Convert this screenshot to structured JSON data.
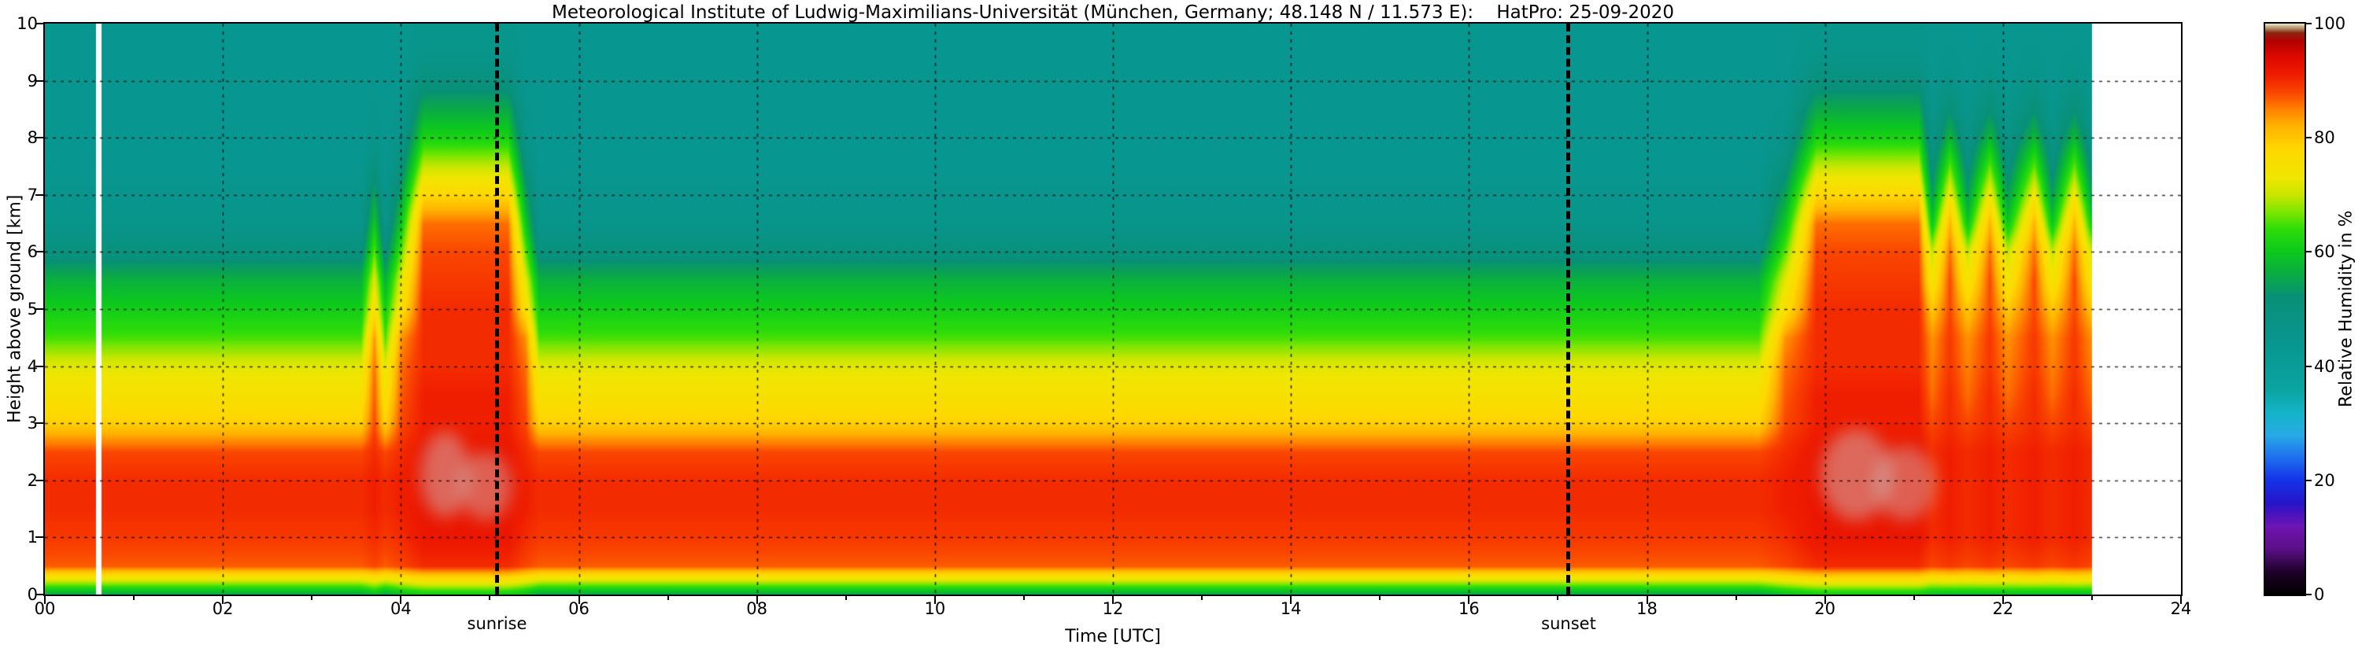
{
  "chart_data": {
    "type": "heatmap",
    "title": "Meteorological Institute of Ludwig-Maximilians-Universität (München, Germany; 48.148 N / 11.573 E):    HatPro: 25-09-2020",
    "xlabel": "Time [UTC]",
    "ylabel": "Height above ground [km]",
    "xlim": [
      0,
      24
    ],
    "ylim": [
      0,
      10
    ],
    "grid": "dashed black, vertical every 2 h, horizontal every 1 km",
    "xticks": [
      {
        "v": 0,
        "label": "00"
      },
      {
        "v": 2,
        "label": "02"
      },
      {
        "v": 4,
        "label": "04"
      },
      {
        "v": 6,
        "label": "06"
      },
      {
        "v": 8,
        "label": "08"
      },
      {
        "v": 10,
        "label": "10"
      },
      {
        "v": 12,
        "label": "12"
      },
      {
        "v": 14,
        "label": "14"
      },
      {
        "v": 16,
        "label": "16"
      },
      {
        "v": 18,
        "label": "18"
      },
      {
        "v": 20,
        "label": "20"
      },
      {
        "v": 22,
        "label": "22"
      },
      {
        "v": 24,
        "label": "24"
      }
    ],
    "xticks_minor": [
      1,
      3,
      5,
      7,
      9,
      11,
      13,
      15,
      17,
      19,
      21,
      23
    ],
    "yticks": [
      {
        "v": 0,
        "label": "0"
      },
      {
        "v": 1,
        "label": "1"
      },
      {
        "v": 2,
        "label": "2"
      },
      {
        "v": 3,
        "label": "3"
      },
      {
        "v": 4,
        "label": "4"
      },
      {
        "v": 5,
        "label": "5"
      },
      {
        "v": 6,
        "label": "6"
      },
      {
        "v": 7,
        "label": "7"
      },
      {
        "v": 8,
        "label": "8"
      },
      {
        "v": 9,
        "label": "9"
      },
      {
        "v": 10,
        "label": "10"
      }
    ],
    "colorbar": {
      "label": "Relative Humidity in %",
      "range": [
        0,
        100
      ],
      "ticks": [
        {
          "v": 0,
          "label": "0"
        },
        {
          "v": 20,
          "label": "20"
        },
        {
          "v": 40,
          "label": "40"
        },
        {
          "v": 60,
          "label": "60"
        },
        {
          "v": 80,
          "label": "80"
        },
        {
          "v": 100,
          "label": "100"
        }
      ]
    },
    "colormap": [
      [
        0,
        "#000000"
      ],
      [
        4,
        "#1e0028"
      ],
      [
        8,
        "#5a0f86"
      ],
      [
        12,
        "#6e14b4"
      ],
      [
        16,
        "#2814c8"
      ],
      [
        20,
        "#1432e6"
      ],
      [
        24,
        "#1e6ef0"
      ],
      [
        28,
        "#28aae6"
      ],
      [
        32,
        "#14b4c8"
      ],
      [
        36,
        "#0aa4a0"
      ],
      [
        44,
        "#089690"
      ],
      [
        52,
        "#089078"
      ],
      [
        56,
        "#0aaa46"
      ],
      [
        60,
        "#0cc81e"
      ],
      [
        64,
        "#2cdc0a"
      ],
      [
        67,
        "#7ce600"
      ],
      [
        70,
        "#c8e600"
      ],
      [
        73,
        "#f0e600"
      ],
      [
        78,
        "#ffd800"
      ],
      [
        82,
        "#ffb400"
      ],
      [
        85,
        "#ff8200"
      ],
      [
        88,
        "#fa4600"
      ],
      [
        91,
        "#f01e00"
      ],
      [
        94,
        "#e00a00"
      ],
      [
        97,
        "#b40000"
      ],
      [
        98.5,
        "#8c2814"
      ],
      [
        99.3,
        "#b99a6e"
      ],
      [
        100,
        "#e8dcc8"
      ]
    ],
    "heights_km": [
      0,
      0.5,
      1,
      1.5,
      2,
      2.5,
      3,
      3.5,
      4,
      4.5,
      5,
      5.5,
      6,
      6.5,
      7,
      7.5,
      8,
      8.5,
      9,
      9.5,
      10
    ],
    "profiles": {
      "base": [
        55,
        87,
        89,
        90,
        90,
        88,
        79,
        75,
        72,
        65,
        61,
        57,
        50,
        46,
        45,
        44,
        44,
        44,
        44,
        44,
        44
      ],
      "p1": [
        58,
        88,
        90,
        91,
        91,
        90,
        88,
        87,
        86,
        84,
        76,
        72,
        66,
        60,
        55,
        50,
        46,
        45,
        44,
        44,
        44
      ],
      "full": [
        60,
        90,
        92,
        92,
        92,
        92,
        91,
        91,
        90,
        90,
        90,
        89,
        88,
        86,
        78,
        70,
        62,
        56,
        50,
        46,
        45
      ],
      "p2": [
        58,
        89,
        91,
        91,
        91,
        91,
        90,
        90,
        89,
        89,
        88,
        88,
        86,
        82,
        74,
        66,
        58,
        52,
        47,
        45,
        44
      ],
      "moderate": [
        58,
        88,
        90,
        90,
        90,
        90,
        88,
        86,
        85,
        84,
        80,
        74,
        70,
        60,
        54,
        50,
        47,
        45,
        44,
        44,
        44
      ]
    },
    "timeline": [
      {
        "t": 0.0,
        "p": "base"
      },
      {
        "t": 3.55,
        "p": "base"
      },
      {
        "t": 3.7,
        "p": "p1"
      },
      {
        "t": 3.82,
        "p": "base"
      },
      {
        "t": 4.0,
        "p": "p1"
      },
      {
        "t": 4.25,
        "p": "full"
      },
      {
        "t": 5.2,
        "p": "full"
      },
      {
        "t": 5.4,
        "p": "p1"
      },
      {
        "t": 5.55,
        "p": "base"
      },
      {
        "t": 19.25,
        "p": "base"
      },
      {
        "t": 19.55,
        "p": "p1"
      },
      {
        "t": 19.9,
        "p": "full"
      },
      {
        "t": 21.05,
        "p": "full"
      },
      {
        "t": 21.2,
        "p": "moderate"
      },
      {
        "t": 21.4,
        "p": "p2"
      },
      {
        "t": 21.6,
        "p": "moderate"
      },
      {
        "t": 21.85,
        "p": "p2"
      },
      {
        "t": 22.05,
        "p": "moderate"
      },
      {
        "t": 22.35,
        "p": "p2"
      },
      {
        "t": 22.55,
        "p": "moderate"
      },
      {
        "t": 22.8,
        "p": "p2"
      },
      {
        "t": 23.0,
        "p": "moderate"
      }
    ],
    "missing_intervals": [
      [
        0.57,
        0.63
      ],
      [
        23.0,
        24.0
      ]
    ],
    "annotations": {
      "sunrise": {
        "t": 5.08,
        "label": "sunrise"
      },
      "sunset": {
        "t": 17.12,
        "label": "sunset"
      }
    },
    "cloud_overlays": [
      {
        "t": 4.5,
        "h": 2.1,
        "rt": 0.28,
        "rh": 0.75,
        "alpha": 0.45
      },
      {
        "t": 4.95,
        "h": 1.9,
        "rt": 0.3,
        "rh": 0.6,
        "alpha": 0.4
      },
      {
        "t": 20.35,
        "h": 2.1,
        "rt": 0.4,
        "rh": 0.8,
        "alpha": 0.45
      },
      {
        "t": 20.9,
        "h": 1.95,
        "rt": 0.35,
        "rh": 0.65,
        "alpha": 0.4
      }
    ],
    "cloud_color": "#cdcdcd",
    "grid_color": "rgba(0,0,0,0.8)"
  }
}
